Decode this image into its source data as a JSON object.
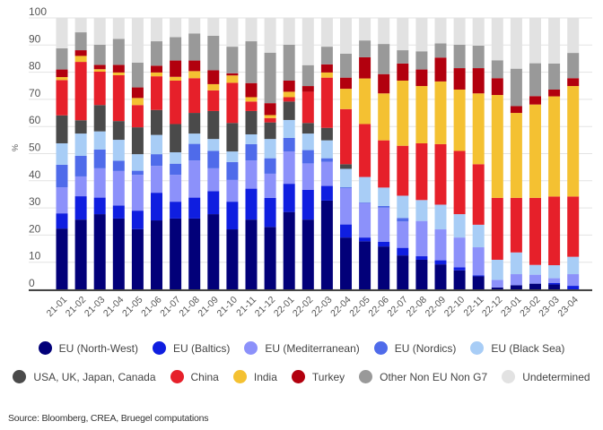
{
  "chart_data": {
    "type": "bar",
    "stacked": true,
    "title": "",
    "xlabel": "",
    "ylabel": "%",
    "ylim": [
      0,
      100
    ],
    "yticks": [
      0,
      10,
      20,
      30,
      40,
      50,
      60,
      70,
      80,
      90,
      100
    ],
    "grid": true,
    "legend_position": "bottom",
    "categories": [
      "21-01",
      "21-02",
      "21-03",
      "21-04",
      "21-05",
      "21-06",
      "21-07",
      "21-08",
      "21-09",
      "21-10",
      "21-11",
      "21-12",
      "22-01",
      "22-02",
      "22-03",
      "22-04",
      "22-05",
      "22-06",
      "22-07",
      "22-08",
      "22-09",
      "22-10",
      "22-11",
      "22-12",
      "23-01",
      "23-02",
      "23-03",
      "23-04"
    ],
    "series": [
      {
        "name": "EU (North-West)",
        "color": "#020079",
        "values": [
          22.4,
          25.7,
          27.7,
          26.1,
          22.2,
          25.4,
          26.1,
          26.1,
          27.7,
          22.1,
          25.7,
          23.0,
          28.5,
          25.7,
          32.7,
          19.1,
          17.7,
          15.8,
          12.5,
          10.9,
          9.2,
          7.0,
          4.8,
          0.7,
          1.5,
          2.1,
          1.8,
          0.0
        ]
      },
      {
        "name": "EU (Baltics)",
        "color": "#0f1ee0",
        "values": [
          5.6,
          8.6,
          6.1,
          4.8,
          6.8,
          10.2,
          6.2,
          7.7,
          8.5,
          10.2,
          11.4,
          10.7,
          10.4,
          11.0,
          5.4,
          4.8,
          1.4,
          1.7,
          2.8,
          1.3,
          1.5,
          1.1,
          0.4,
          0.0,
          0.0,
          0.0,
          0.6,
          1.3
        ]
      },
      {
        "name": "EU (Mediterranean)",
        "color": "#8c91fa",
        "values": [
          9.6,
          7.3,
          10.8,
          12.7,
          13.2,
          9.9,
          9.9,
          13.7,
          8.4,
          8.0,
          10.4,
          8.9,
          11.9,
          9.7,
          8.9,
          13.4,
          12.7,
          12.6,
          9.7,
          13.0,
          11.4,
          11.0,
          10.3,
          2.8,
          4.1,
          3.3,
          1.7,
          4.3
        ]
      },
      {
        "name": "EU (Nordics)",
        "color": "#4f6bea",
        "values": [
          8.3,
          7.6,
          6.9,
          3.8,
          1.5,
          4.3,
          4.1,
          6.1,
          6.4,
          6.6,
          6.0,
          5.7,
          5.0,
          4.9,
          1.3,
          0.3,
          0.2,
          0.6,
          1.3,
          0.0,
          0.0,
          0.0,
          0.0,
          0.0,
          0.0,
          0.0,
          0.0,
          0.0
        ]
      },
      {
        "name": "EU (Black Sea)",
        "color": "#a8cdf6",
        "values": [
          7.9,
          8.2,
          6.7,
          7.7,
          6.1,
          7.1,
          4.2,
          3.8,
          4.4,
          3.9,
          3.6,
          7.1,
          6.6,
          6.1,
          6.6,
          6.8,
          9.4,
          6.8,
          8.2,
          7.7,
          9.1,
          8.6,
          8.3,
          7.4,
          8.0,
          3.6,
          4.8,
          6.4
        ]
      },
      {
        "name": "USA, UK, Japan, Canada",
        "color": "#4a4a4a",
        "values": [
          10.3,
          4.9,
          9.7,
          6.9,
          9.9,
          9.2,
          10.4,
          7.6,
          10.3,
          10.5,
          8.6,
          6.1,
          6.8,
          3.9,
          4.6,
          1.7,
          0.0,
          0.0,
          0.0,
          0.0,
          0.0,
          0.0,
          0.0,
          0.0,
          0.0,
          0.0,
          0.0,
          0.0
        ]
      },
      {
        "name": "China",
        "color": "#e6202a",
        "values": [
          13.0,
          21.5,
          12.3,
          16.9,
          8.2,
          12.4,
          16.0,
          12.8,
          7.6,
          14.8,
          3.5,
          1.6,
          1.6,
          11.5,
          18.5,
          20.3,
          19.5,
          17.4,
          18.4,
          20.9,
          22.3,
          23.3,
          22.3,
          22.8,
          20.1,
          24.7,
          25.3,
          22.2
        ]
      },
      {
        "name": "India",
        "color": "#f4c132",
        "values": [
          1.1,
          2.2,
          0.9,
          1.0,
          2.6,
          1.4,
          1.4,
          2.6,
          2.3,
          2.7,
          1.6,
          1.1,
          2.0,
          0.0,
          1.9,
          7.5,
          16.8,
          17.3,
          24.0,
          21.1,
          23.1,
          22.6,
          26.1,
          37.9,
          31.3,
          34.4,
          36.9,
          40.7
        ]
      },
      {
        "name": "Turkey",
        "color": "#b2000e",
        "values": [
          2.8,
          2.1,
          1.6,
          2.8,
          3.9,
          2.5,
          6.0,
          3.9,
          5.1,
          0.8,
          5.2,
          4.4,
          4.1,
          2.1,
          3.0,
          4.1,
          7.8,
          7.1,
          6.3,
          6.1,
          8.8,
          7.9,
          9.3,
          6.2,
          2.5,
          3.1,
          2.5,
          2.9
        ]
      },
      {
        "name": "Other Non EU Non G7",
        "color": "#999999",
        "values": [
          7.8,
          6.6,
          7.4,
          9.6,
          9.1,
          9.0,
          8.6,
          10.0,
          12.7,
          9.8,
          15.4,
          18.6,
          13.2,
          7.7,
          6.5,
          8.8,
          6.2,
          11.1,
          4.9,
          6.7,
          5.2,
          8.6,
          8.3,
          6.6,
          13.8,
          12.1,
          9.6,
          9.3
        ]
      },
      {
        "name": "Undetermined",
        "color": "#e2e2e2",
        "values": [
          11.2,
          5.3,
          9.9,
          7.7,
          16.5,
          8.6,
          7.1,
          5.7,
          6.6,
          10.6,
          8.6,
          12.8,
          9.9,
          17.4,
          10.6,
          13.2,
          8.3,
          9.6,
          11.9,
          12.3,
          9.4,
          9.9,
          10.2,
          15.6,
          18.7,
          16.7,
          16.8,
          12.9
        ]
      }
    ]
  },
  "source": "Source: Bloomberg, CREA, Bruegel computations"
}
